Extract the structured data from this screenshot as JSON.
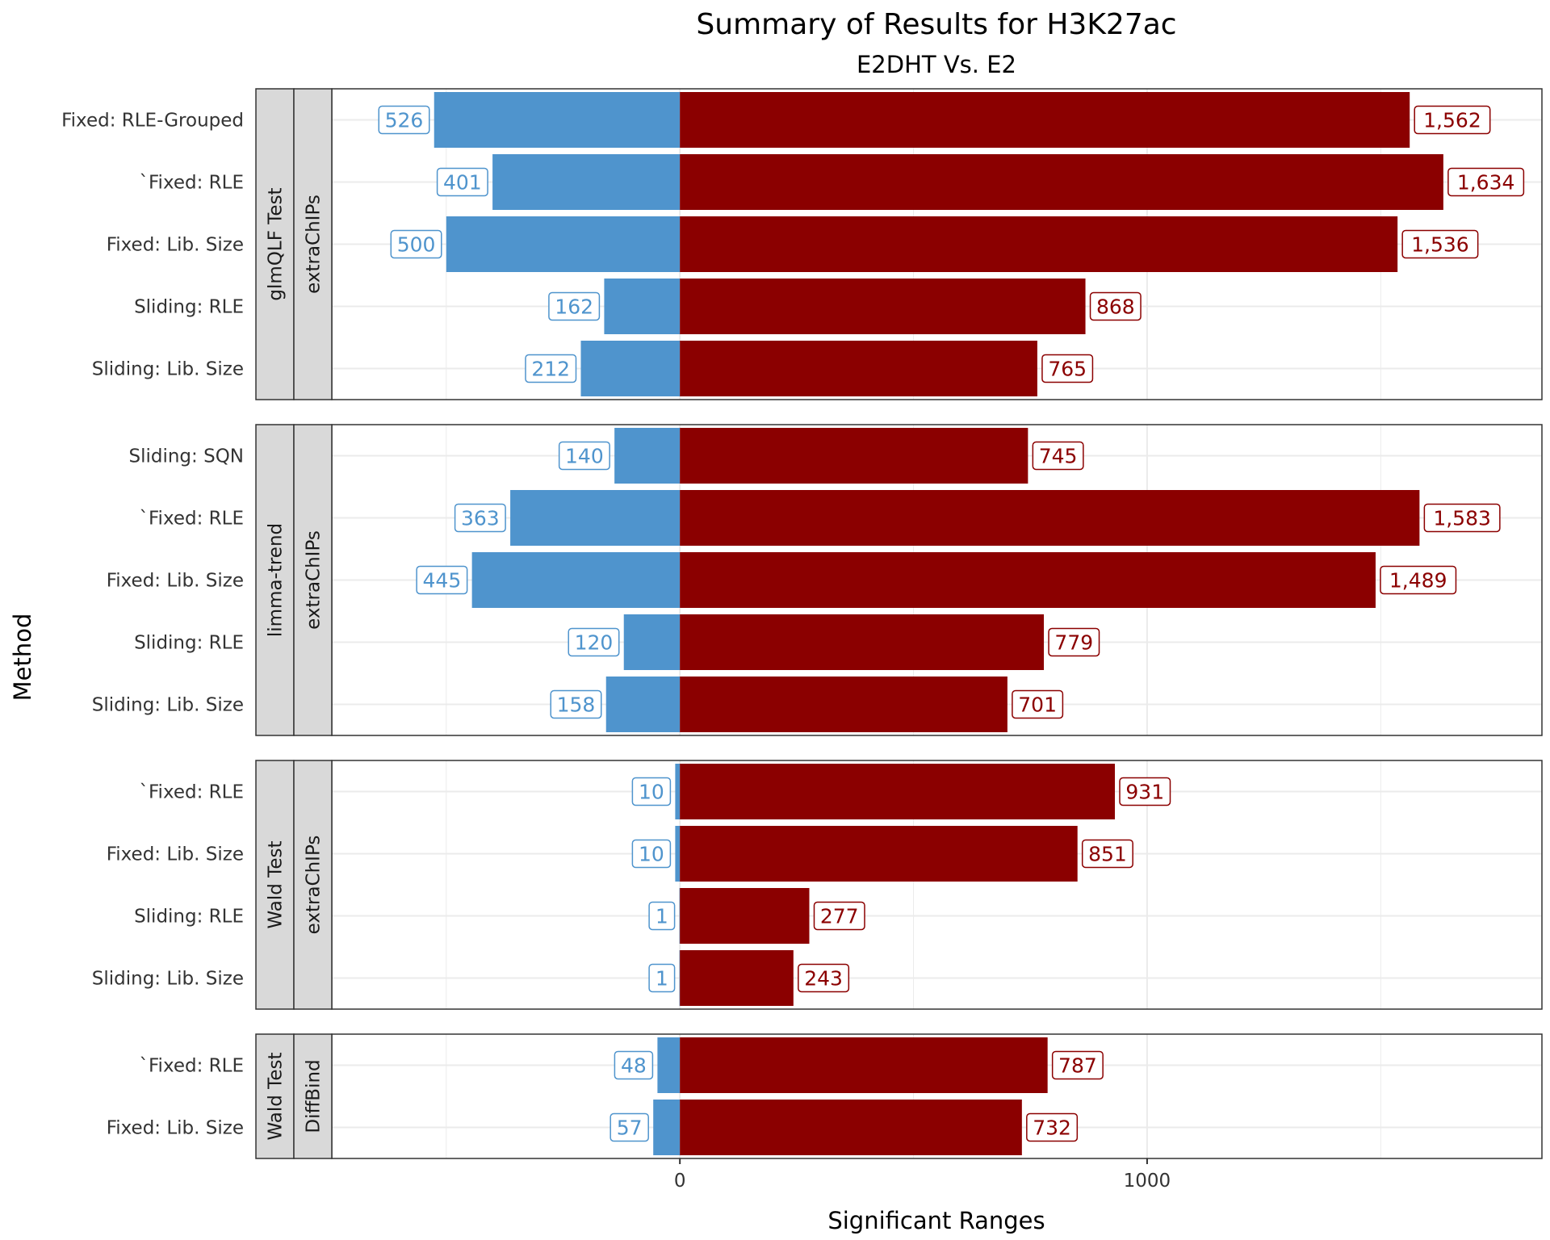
{
  "chart_data": {
    "type": "bar",
    "orientation": "horizontal",
    "title": "Summary of Results for H3K27ac",
    "subtitle": "E2DHT Vs. E2",
    "xlabel": "Significant Ranges",
    "ylabel": "Method",
    "xlim": [
      -745,
      1845
    ],
    "x_ticks": [
      0,
      1000
    ],
    "x_ticks_text": [
      "0",
      "1000"
    ],
    "grid": true,
    "series": [
      {
        "key": "down",
        "color": "#4f94cd",
        "sign": -1
      },
      {
        "key": "up",
        "color": "#8b0000",
        "sign": 1
      }
    ],
    "panels": [
      {
        "test": "glmQLF Test",
        "package": "extraChIPs",
        "rows": [
          {
            "label": "Fixed: RLE-Grouped",
            "marker": "",
            "highlight": false,
            "down": 526,
            "down_text": "526",
            "up": 1562,
            "up_text": "1,562"
          },
          {
            "label": "Fixed: RLE",
            "marker": "`",
            "highlight": true,
            "down": 401,
            "down_text": "401",
            "up": 1634,
            "up_text": "1,634"
          },
          {
            "label": "Fixed: Lib. Size",
            "marker": "",
            "highlight": false,
            "down": 500,
            "down_text": "500",
            "up": 1536,
            "up_text": "1,536"
          },
          {
            "label": "Sliding: RLE",
            "marker": "",
            "highlight": false,
            "down": 162,
            "down_text": "162",
            "up": 868,
            "up_text": "868"
          },
          {
            "label": "Sliding: Lib. Size",
            "marker": "",
            "highlight": false,
            "down": 212,
            "down_text": "212",
            "up": 765,
            "up_text": "765"
          }
        ]
      },
      {
        "test": "limma-trend",
        "package": "extraChIPs",
        "rows": [
          {
            "label": "Sliding: SQN",
            "marker": "",
            "highlight": false,
            "down": 140,
            "down_text": "140",
            "up": 745,
            "up_text": "745"
          },
          {
            "label": "Fixed: RLE",
            "marker": "`",
            "highlight": true,
            "down": 363,
            "down_text": "363",
            "up": 1583,
            "up_text": "1,583"
          },
          {
            "label": "Fixed: Lib. Size",
            "marker": "",
            "highlight": false,
            "down": 445,
            "down_text": "445",
            "up": 1489,
            "up_text": "1,489"
          },
          {
            "label": "Sliding: RLE",
            "marker": "",
            "highlight": false,
            "down": 120,
            "down_text": "120",
            "up": 779,
            "up_text": "779"
          },
          {
            "label": "Sliding: Lib. Size",
            "marker": "",
            "highlight": false,
            "down": 158,
            "down_text": "158",
            "up": 701,
            "up_text": "701"
          }
        ]
      },
      {
        "test": "Wald Test",
        "package": "extraChIPs",
        "rows": [
          {
            "label": "Fixed: RLE",
            "marker": "`",
            "highlight": true,
            "down": 10,
            "down_text": "10",
            "up": 931,
            "up_text": "931"
          },
          {
            "label": "Fixed: Lib. Size",
            "marker": "",
            "highlight": false,
            "down": 10,
            "down_text": "10",
            "up": 851,
            "up_text": "851"
          },
          {
            "label": "Sliding: RLE",
            "marker": "",
            "highlight": false,
            "down": 1,
            "down_text": "1",
            "up": 277,
            "up_text": "277"
          },
          {
            "label": "Sliding: Lib. Size",
            "marker": "",
            "highlight": false,
            "down": 1,
            "down_text": "1",
            "up": 243,
            "up_text": "243"
          }
        ]
      },
      {
        "test": "Wald Test",
        "package": "DiffBind",
        "rows": [
          {
            "label": "Fixed: RLE",
            "marker": "`",
            "highlight": true,
            "down": 48,
            "down_text": "48",
            "up": 787,
            "up_text": "787"
          },
          {
            "label": "Fixed: Lib. Size",
            "marker": "",
            "highlight": false,
            "down": 57,
            "down_text": "57",
            "up": 732,
            "up_text": "732"
          }
        ]
      }
    ],
    "colors": {
      "down": "#4f94cd",
      "up": "#8b0000",
      "highlight_label": "#cc6600",
      "strip_fill": "#d9d9d9",
      "grid": "#ebebeb",
      "panel_border": "#333333"
    }
  }
}
